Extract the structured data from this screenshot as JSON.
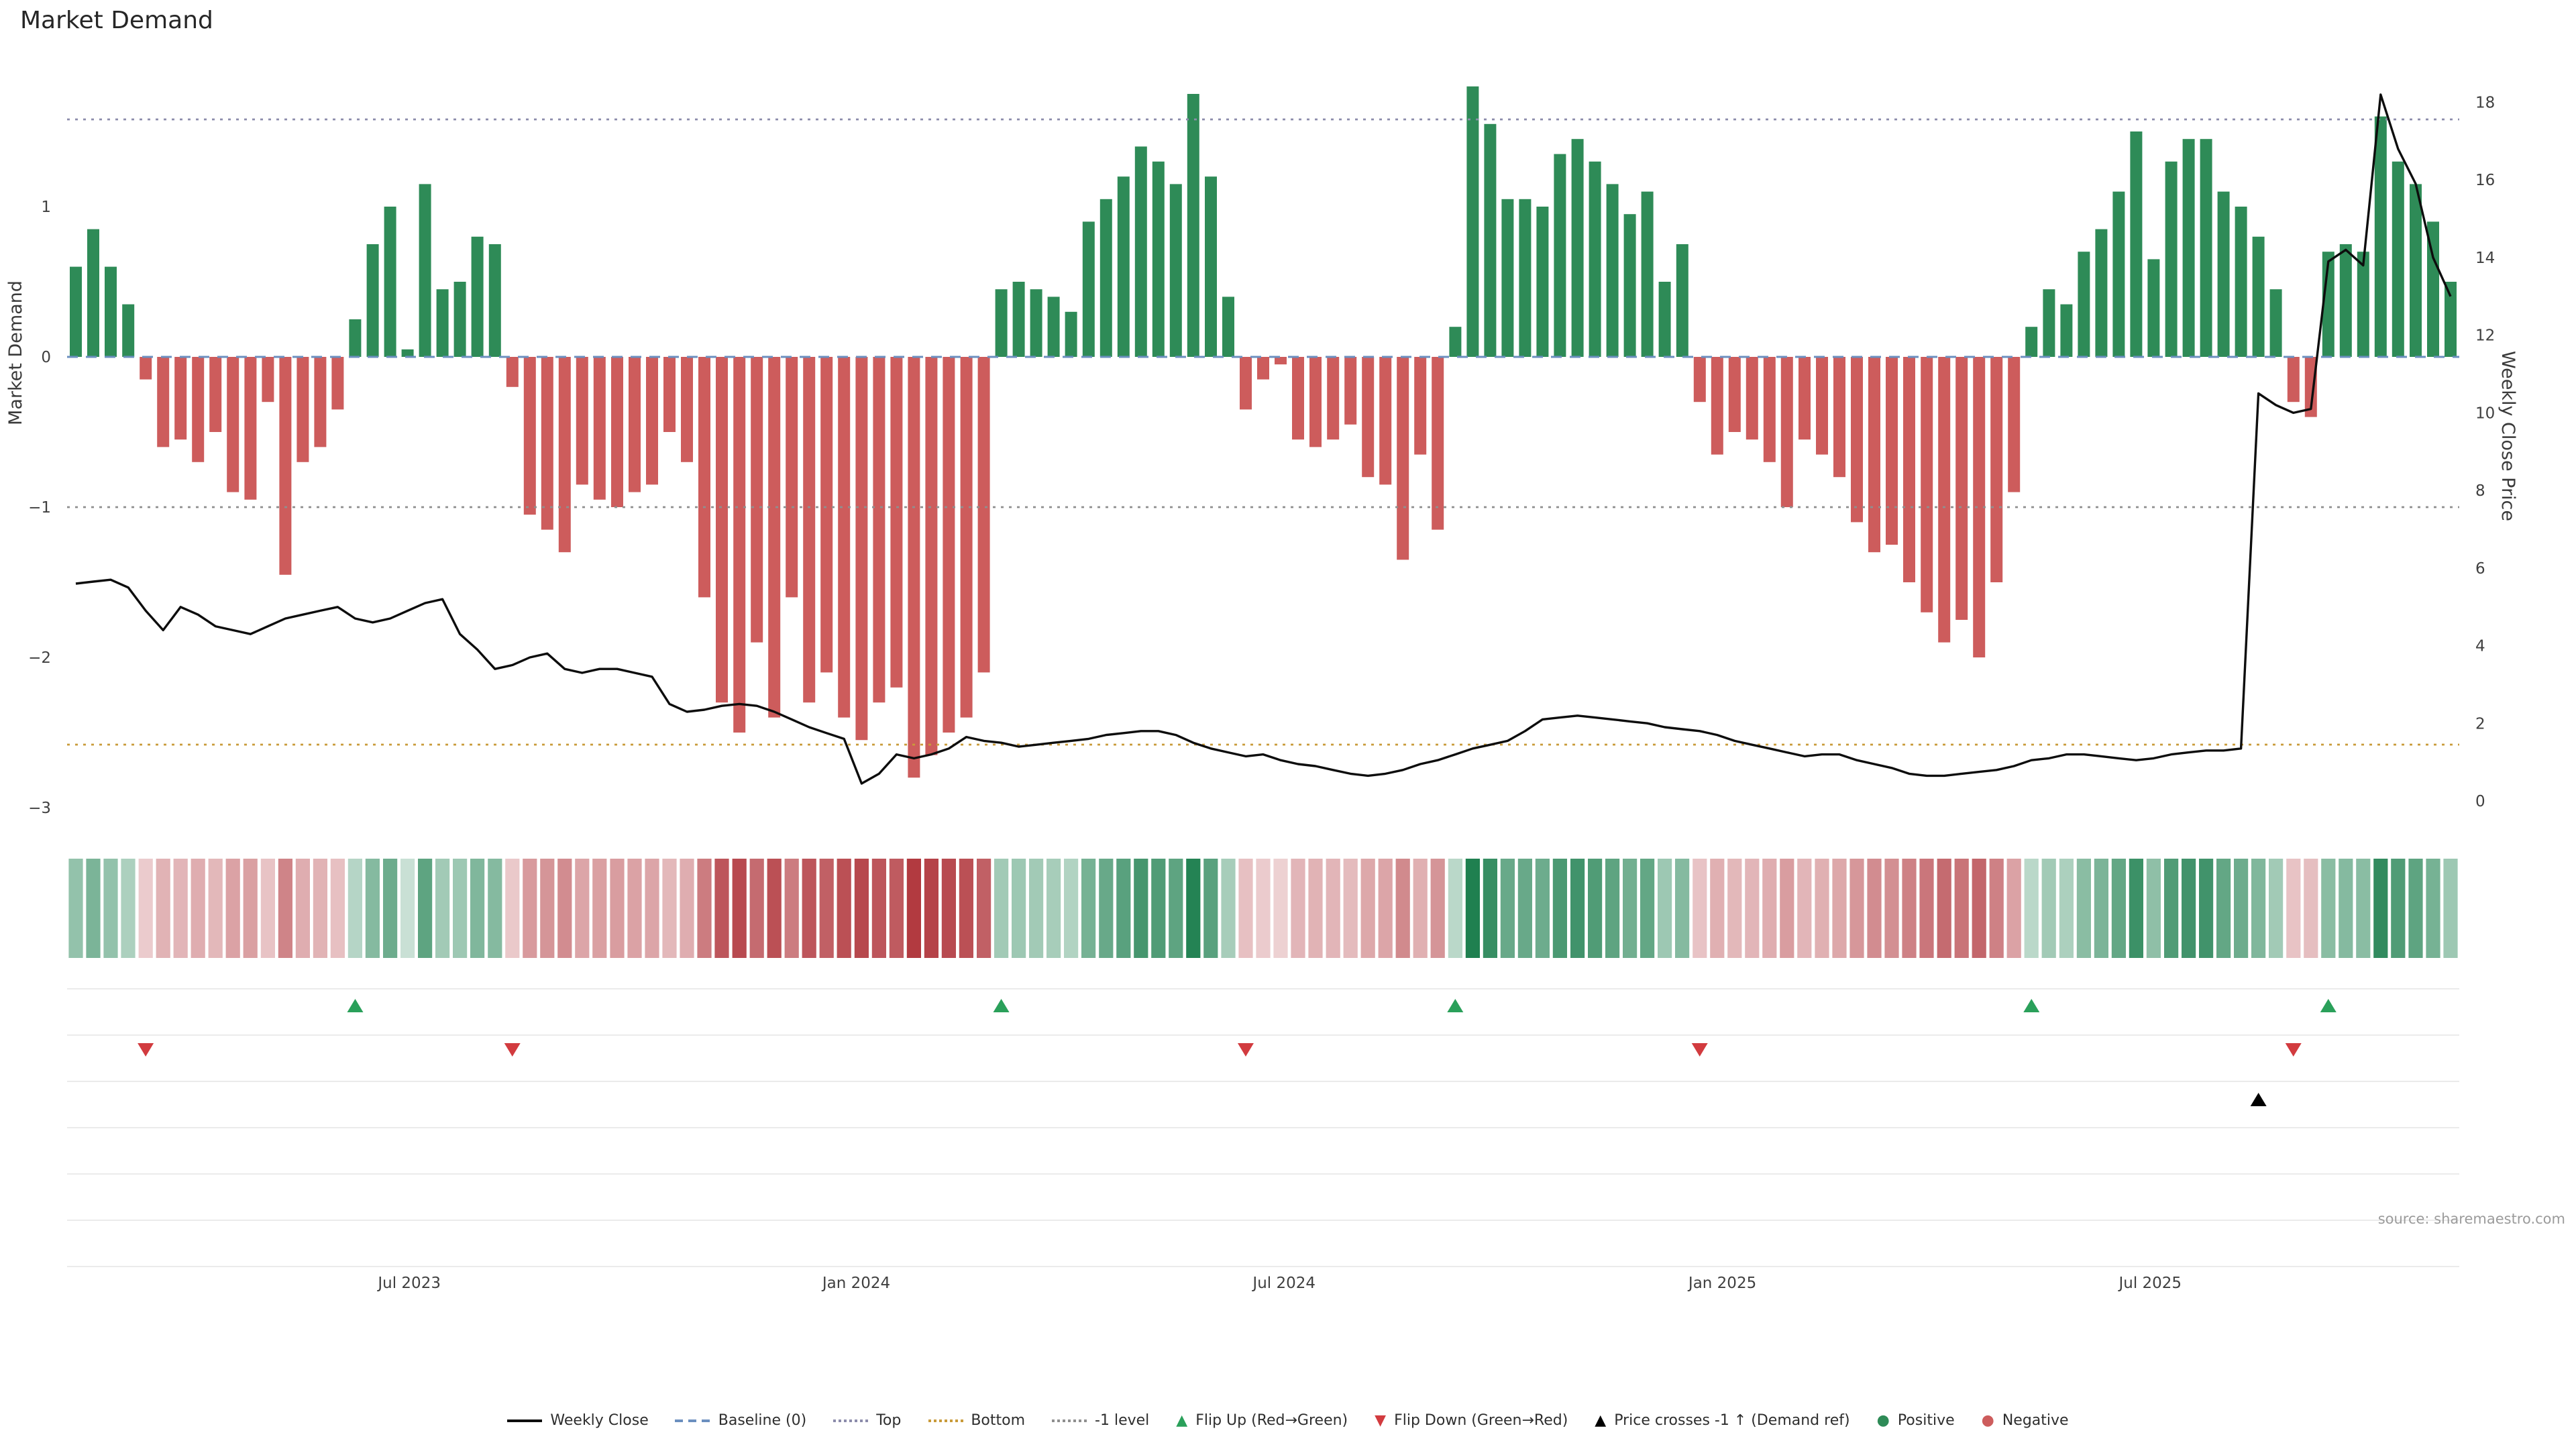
{
  "title": "Market Demand",
  "source": "source: sharemaestro.com",
  "axes": {
    "left_label": "Market Demand",
    "right_label": "Weekly Close Price",
    "left_ticks": [
      "1",
      "0",
      "−1",
      "−2",
      "−3"
    ],
    "right_ticks": [
      "18",
      "16",
      "14",
      "12",
      "10",
      "8",
      "6",
      "4",
      "2",
      "0"
    ]
  },
  "chart_data": {
    "type": "bar",
    "overlays": [
      "line",
      "heatmap",
      "event-markers"
    ],
    "title": "Market Demand",
    "ylabel": "Market Demand",
    "y2label": "Weekly Close Price",
    "x_unit": "week",
    "demand_axis_range": [
      -3.05,
      1.93
    ],
    "price_axis_range": [
      0,
      18
    ],
    "grid": false,
    "legend_position": "bottom-center",
    "demand": [
      0.6,
      0.85,
      0.6,
      0.35,
      -0.15,
      -0.6,
      -0.55,
      -0.7,
      -0.5,
      -0.9,
      -0.95,
      -0.3,
      -1.45,
      -0.7,
      -0.6,
      -0.35,
      0.25,
      0.75,
      1.0,
      0.05,
      1.15,
      0.45,
      0.5,
      0.8,
      0.75,
      -0.2,
      -1.05,
      -1.15,
      -1.3,
      -0.85,
      -0.95,
      -1.0,
      -0.9,
      -0.85,
      -0.5,
      -0.7,
      -1.6,
      -2.3,
      -2.5,
      -1.9,
      -2.4,
      -1.6,
      -2.3,
      -2.1,
      -2.4,
      -2.55,
      -2.3,
      -2.2,
      -2.8,
      -2.65,
      -2.5,
      -2.4,
      -2.1,
      0.45,
      0.5,
      0.45,
      0.4,
      0.3,
      0.9,
      1.05,
      1.2,
      1.4,
      1.3,
      1.15,
      1.75,
      1.2,
      0.4,
      -0.35,
      -0.15,
      -0.05,
      -0.55,
      -0.6,
      -0.55,
      -0.45,
      -0.8,
      -0.85,
      -1.35,
      -0.65,
      -1.15,
      0.2,
      1.8,
      1.55,
      1.05,
      1.05,
      1.0,
      1.35,
      1.45,
      1.3,
      1.15,
      0.95,
      1.1,
      0.5,
      0.75,
      -0.3,
      -0.65,
      -0.5,
      -0.55,
      -0.7,
      -1.0,
      -0.55,
      -0.65,
      -0.8,
      -1.1,
      -1.3,
      -1.25,
      -1.5,
      -1.7,
      -1.9,
      -1.75,
      -2.0,
      -1.5,
      -0.9,
      0.2,
      0.45,
      0.35,
      0.7,
      0.85,
      1.1,
      1.5,
      0.65,
      1.3,
      1.45,
      1.45,
      1.1,
      1.0,
      0.8,
      0.45,
      -0.3,
      -0.4,
      0.7,
      0.75,
      0.7,
      1.6,
      1.3,
      1.15,
      0.9,
      0.5
    ],
    "price": [
      5.6,
      5.65,
      5.7,
      5.5,
      4.9,
      4.4,
      5.0,
      4.8,
      4.5,
      4.4,
      4.3,
      4.5,
      4.7,
      4.8,
      4.9,
      5.0,
      4.7,
      4.6,
      4.7,
      4.9,
      5.1,
      5.2,
      4.3,
      3.9,
      3.4,
      3.5,
      3.7,
      3.8,
      3.4,
      3.3,
      3.4,
      3.4,
      3.3,
      3.2,
      2.5,
      2.3,
      2.35,
      2.45,
      2.5,
      2.45,
      2.3,
      2.1,
      1.9,
      1.75,
      1.6,
      0.45,
      0.7,
      1.2,
      1.1,
      1.2,
      1.35,
      1.65,
      1.55,
      1.5,
      1.4,
      1.45,
      1.5,
      1.55,
      1.6,
      1.7,
      1.75,
      1.8,
      1.8,
      1.7,
      1.5,
      1.35,
      1.25,
      1.15,
      1.2,
      1.05,
      0.95,
      0.9,
      0.8,
      0.7,
      0.65,
      0.7,
      0.8,
      0.95,
      1.05,
      1.2,
      1.35,
      1.45,
      1.55,
      1.8,
      2.1,
      2.15,
      2.2,
      2.15,
      2.1,
      2.05,
      2.0,
      1.9,
      1.85,
      1.8,
      1.7,
      1.55,
      1.45,
      1.35,
      1.25,
      1.15,
      1.2,
      1.2,
      1.05,
      0.95,
      0.85,
      0.7,
      0.65,
      0.65,
      0.7,
      0.75,
      0.8,
      0.9,
      1.05,
      1.1,
      1.2,
      1.2,
      1.15,
      1.1,
      1.05,
      1.1,
      1.2,
      1.25,
      1.3,
      1.3,
      1.35,
      10.5,
      10.2,
      10.0,
      10.1,
      13.9,
      14.2,
      13.8,
      18.2,
      16.8,
      15.9,
      14.0,
      13.0
    ],
    "levels": {
      "baseline": 0,
      "top": 1.58,
      "bottom": -2.58,
      "minus1": -1
    },
    "flip_up_weeks": [
      17,
      54,
      80,
      113,
      130
    ],
    "flip_down_weeks": [
      5,
      26,
      68,
      94,
      128
    ],
    "price_cross_weeks": [
      126
    ],
    "x_ticks": [
      {
        "label": "Jul 2023",
        "index": 19.6
      },
      {
        "label": "Jan 2024",
        "index": 45.2
      },
      {
        "label": "Jul 2024",
        "index": 69.7
      },
      {
        "label": "Jan 2025",
        "index": 94.8
      },
      {
        "label": "Jul 2025",
        "index": 119.3
      }
    ],
    "colors": {
      "positive": "#2e8b57",
      "negative": "#cd5c5c",
      "price_line": "#0d0d0d",
      "baseline": "#6b8fbf",
      "top_line": "#8c8cab",
      "bottom_line": "#c99b3a",
      "minus1_line": "#8f8f8f",
      "flip_up": "#2aa05a",
      "flip_down": "#d23b3f"
    }
  },
  "legend": {
    "items": [
      {
        "label": "Weekly Close",
        "type": "line",
        "color": "#0d0d0d",
        "icon": "weekly-close-line-icon"
      },
      {
        "label": "Baseline (0)",
        "type": "dash",
        "color": "#6b8fbf",
        "icon": "baseline-dash-icon"
      },
      {
        "label": "Top",
        "type": "dots",
        "color": "#8c8cab",
        "icon": "top-dotted-line-icon"
      },
      {
        "label": "Bottom",
        "type": "dots",
        "color": "#c99b3a",
        "icon": "bottom-dotted-line-icon"
      },
      {
        "label": "-1 level",
        "type": "dots",
        "color": "#8f8f8f",
        "icon": "minus1-dotted-line-icon"
      },
      {
        "label": "Flip Up (Red→Green)",
        "type": "tri-up",
        "color": "#2aa05a",
        "icon": "flip-up-triangle-icon"
      },
      {
        "label": "Flip Down (Green→Red)",
        "type": "tri-down",
        "color": "#d23b3f",
        "icon": "flip-down-triangle-icon"
      },
      {
        "label": "Price crosses -1 ↑ (Demand ref)",
        "type": "tri-up",
        "color": "#000000",
        "icon": "price-cross-triangle-icon"
      },
      {
        "label": "Positive",
        "type": "circle",
        "color": "#2e8b57",
        "icon": "positive-dot-icon"
      },
      {
        "label": "Negative",
        "type": "circle",
        "color": "#cd5c5c",
        "icon": "negative-dot-icon"
      }
    ]
  }
}
